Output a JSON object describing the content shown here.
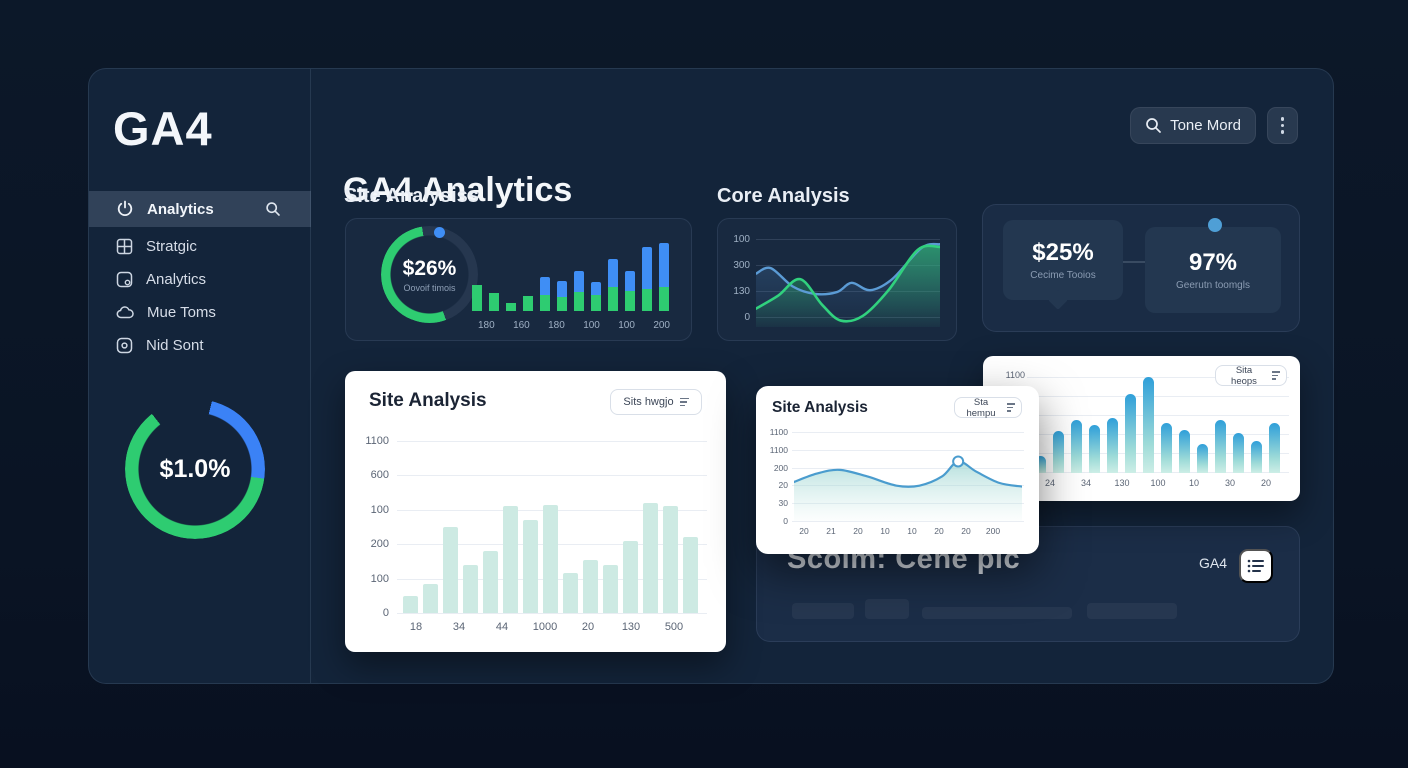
{
  "colors": {
    "green": "#2ecc71",
    "blue": "#3f8ef5",
    "line_blue": "#5b9bd5",
    "line_green": "#31d17e",
    "mint": "#cdeae3",
    "accent_dot": "#4f9fd6"
  },
  "app": {
    "logo": "GA4",
    "title": "GA4 Analytics"
  },
  "header": {
    "search_button": "Tone Mord"
  },
  "sidebar": {
    "items": [
      {
        "label": "Analytics",
        "icon": "power-icon",
        "selected": true
      },
      {
        "label": "Stratgic",
        "icon": "grid-icon",
        "selected": false
      },
      {
        "label": "Analytics",
        "icon": "chart-icon",
        "selected": false
      },
      {
        "label": "Mue Toms",
        "icon": "cloud-icon",
        "selected": false
      },
      {
        "label": "Nid Sont",
        "icon": "stop-icon",
        "selected": false
      }
    ],
    "donut_value": "$1.0%"
  },
  "sections": {
    "site_analysiss": "Site Analysiss",
    "core_analysis": "Core Analysis"
  },
  "cards": {
    "site": {
      "donut_value": "$26%",
      "donut_label": "Oovoif timois"
    },
    "stats": {
      "left_value": "$25%",
      "left_label": "Cecime Tooios",
      "right_value": "97%",
      "right_label": "Geerutn toomgls"
    },
    "white_big": {
      "title": "Site Analysis",
      "dropdown": "Sits hwgjo"
    },
    "overlay": {
      "title": "Site Analysis",
      "dropdown": "Sta hempu"
    },
    "top_right": {
      "dropdown": "Sita heops",
      "y_top": "1100"
    },
    "bottom": {
      "title": "Scoim: Cene pic",
      "badge": "GA4"
    }
  },
  "chart_data": [
    {
      "id": "stacked_mini",
      "type": "bar",
      "stacked": true,
      "legend_position": "none",
      "grid": false,
      "categories": [
        "180",
        "160",
        "180",
        "100",
        "100",
        "200"
      ],
      "series": [
        {
          "name": "green",
          "values": [
            33,
            22,
            10,
            19,
            20,
            17,
            24,
            20,
            30,
            25,
            28,
            30
          ]
        },
        {
          "name": "blue",
          "values": [
            0,
            0,
            0,
            0,
            22,
            20,
            26,
            16,
            35,
            25,
            52,
            55
          ]
        }
      ],
      "note_units": "percent of plot height, one x label per two bars"
    },
    {
      "id": "core_lines",
      "type": "line",
      "grid": true,
      "y_ticks": [
        "100",
        "300",
        "130",
        "0"
      ],
      "series": [
        {
          "name": "blue",
          "x": [
            0,
            0.08,
            0.2,
            0.32,
            0.44,
            0.52,
            0.62,
            0.74,
            0.9,
            1
          ],
          "y": [
            0.58,
            0.64,
            0.44,
            0.36,
            0.38,
            0.48,
            0.4,
            0.52,
            0.86,
            0.9
          ]
        },
        {
          "name": "green",
          "x": [
            0,
            0.12,
            0.24,
            0.36,
            0.46,
            0.58,
            0.72,
            0.88,
            1
          ],
          "y": [
            0.2,
            0.34,
            0.52,
            0.24,
            0.07,
            0.12,
            0.4,
            0.84,
            0.87
          ]
        }
      ]
    },
    {
      "id": "mint_bars",
      "type": "bar",
      "grid": true,
      "y_ticks": [
        "1100",
        "600",
        "100",
        "200",
        "100",
        "0"
      ],
      "categories": [
        "18",
        "34",
        "44",
        "1000",
        "20",
        "130",
        "500"
      ],
      "values": [
        10,
        17,
        50,
        28,
        36,
        62,
        54,
        63,
        23,
        31,
        28,
        42,
        64,
        62,
        44
      ],
      "note_units": "percent of plot height"
    },
    {
      "id": "overlay_area",
      "type": "area",
      "grid": true,
      "y_ticks": [
        "1100",
        "1100",
        "200",
        "20",
        "30",
        "0"
      ],
      "categories": [
        "20",
        "21",
        "20",
        "10",
        "10",
        "20",
        "20",
        "200"
      ],
      "x": [
        0,
        0.1,
        0.2,
        0.32,
        0.45,
        0.55,
        0.65,
        0.72,
        0.8,
        0.9,
        1
      ],
      "y": [
        0.42,
        0.51,
        0.55,
        0.48,
        0.38,
        0.38,
        0.48,
        0.64,
        0.53,
        0.41,
        0.37
      ],
      "marker": [
        0.72,
        0.64
      ]
    },
    {
      "id": "gradient_bars",
      "type": "bar",
      "grid": true,
      "y_ticks": [
        "1100"
      ],
      "categories": [
        "24",
        "34",
        "130",
        "100",
        "10",
        "30",
        "20"
      ],
      "values": [
        18,
        44,
        55,
        50,
        57,
        82,
        100,
        52,
        45,
        30,
        55,
        42,
        33,
        52
      ],
      "note_units": "percent of plot height"
    }
  ]
}
